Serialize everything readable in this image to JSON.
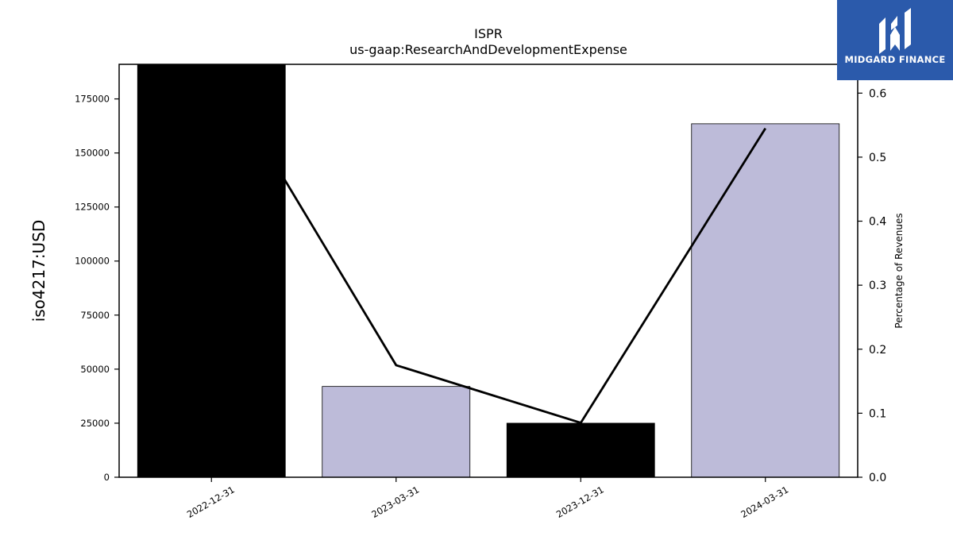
{
  "brand": {
    "name": "MIDGARD FINANCE",
    "color": "#2b5aab",
    "icon": "midgard-logo-icon"
  },
  "chart_data": {
    "type": "bar",
    "title": "ISPR",
    "subtitle": "us-gaap:ResearchAndDevelopmentExpense",
    "categories": [
      "2022-12-31",
      "2023-03-31",
      "2023-12-31",
      "2024-03-31"
    ],
    "series": [
      {
        "values": [
          191000,
          42000,
          25000,
          163500
        ],
        "colors": [
          "#000000",
          "#bdbbd9",
          "#000000",
          "#bdbbd9"
        ]
      }
    ],
    "line_series": {
      "values": [
        0.655,
        0.175,
        0.085,
        0.545
      ],
      "color": "#000000"
    },
    "ylabel": "iso4217:USD",
    "ylabel_right": "Percentage of Revenues",
    "ylim": [
      0,
      191000
    ],
    "ylim_right": [
      0,
      0.645
    ],
    "yticks": [
      0,
      25000,
      50000,
      75000,
      100000,
      125000,
      150000,
      175000
    ],
    "yticks_right": [
      "0.0",
      "0.1",
      "0.2",
      "0.3",
      "0.4",
      "0.5",
      "0.6"
    ],
    "grid": false,
    "legend": "none"
  }
}
